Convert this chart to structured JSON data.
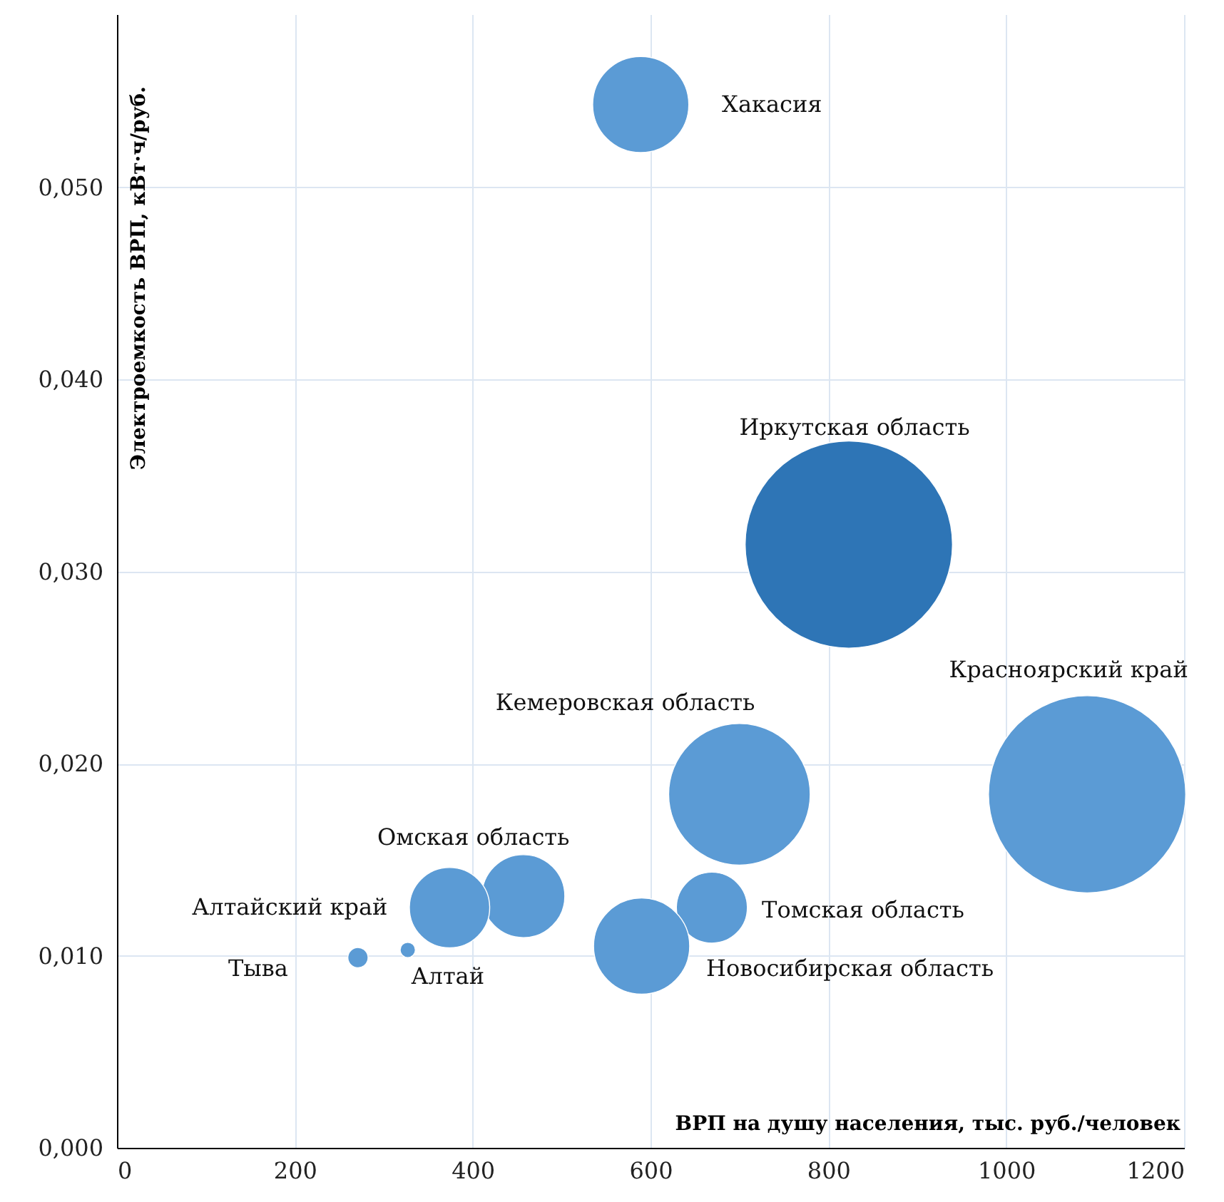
{
  "chart_data": {
    "type": "bubble",
    "xlabel": "ВРП на душу населения, тыс. руб./человек",
    "ylabel": "Электроемкость ВРП, кВт·ч/руб.",
    "series": [
      {
        "name": "Хакасия",
        "color": "#5b9bd5",
        "x": [
          589
        ],
        "values": [
          0.0543
        ],
        "sizes": [
          0.215
        ]
      },
      {
        "name": "Иркутская область",
        "color": "#2e75b6",
        "x": [
          823
        ],
        "values": [
          0.0314
        ],
        "sizes": [
          1
        ]
      },
      {
        "name": "Красноярский край",
        "color": "#5b9bd5",
        "x": [
          1091
        ],
        "values": [
          0.0184
        ],
        "sizes": [
          0.905
        ]
      },
      {
        "name": "Кемеровская область",
        "color": "#5b9bd5",
        "x": [
          700
        ],
        "values": [
          0.0184
        ],
        "sizes": [
          0.466
        ]
      },
      {
        "name": "Омская область",
        "color": "#5b9bd5",
        "x": [
          457
        ],
        "values": [
          0.0131
        ],
        "sizes": [
          0.16
        ]
      },
      {
        "name": "Алтайский край",
        "color": "#5b9bd5",
        "x": [
          374
        ],
        "values": [
          0.0125
        ],
        "sizes": [
          0.15
        ]
      },
      {
        "name": "Томская область",
        "color": "#5b9bd5",
        "x": [
          669
        ],
        "values": [
          0.0125
        ],
        "sizes": [
          0.117
        ]
      },
      {
        "name": "Новосибирская область",
        "color": "#5b9bd5",
        "x": [
          590
        ],
        "values": [
          0.0105
        ],
        "sizes": [
          0.215
        ]
      },
      {
        "name": "Тыва",
        "color": "#5b9bd5",
        "x": [
          271
        ],
        "values": [
          0.0099
        ],
        "sizes": [
          0.0095
        ]
      },
      {
        "name": "Алтай",
        "color": "#5b9bd5",
        "x": [
          327
        ],
        "values": [
          0.0103
        ],
        "sizes": [
          0.0054
        ]
      }
    ],
    "xlim": [
      0,
      1200
    ],
    "xticks": [
      0,
      200,
      400,
      600,
      800,
      1000,
      1200
    ],
    "ylim": [
      0,
      0.059
    ],
    "yticks": [
      {
        "value": 0,
        "label": "0,000"
      },
      {
        "value": 0.01,
        "label": "0,010"
      },
      {
        "value": 0.02,
        "label": "0,020"
      },
      {
        "value": 0.03,
        "label": "0,030"
      },
      {
        "value": 0.04,
        "label": "0,040"
      },
      {
        "value": 0.05,
        "label": "0,050"
      }
    ],
    "grid": true
  }
}
